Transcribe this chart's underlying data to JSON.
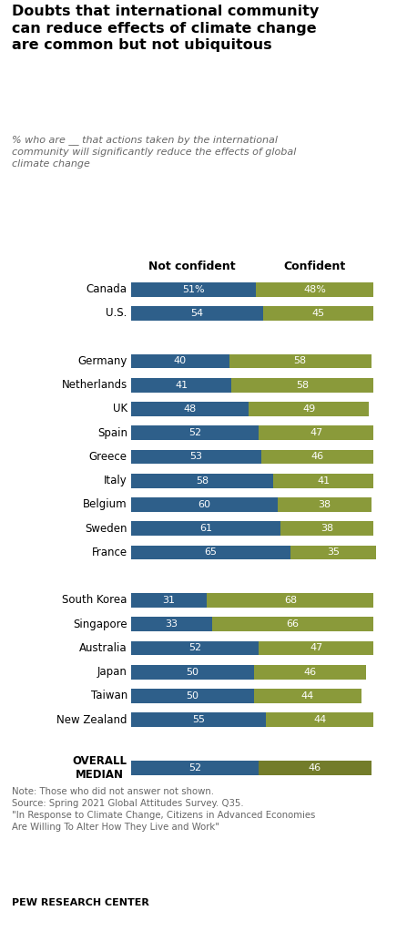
{
  "title": "Doubts that international community\ncan reduce effects of climate change\nare common but not ubiquitous",
  "subtitle": "% who are __ that actions taken by the international\ncommunity will significantly reduce the effects of global\nclimate change",
  "col_header_not": "Not confident",
  "col_header_conf": "Confident",
  "categories": [
    "Canada",
    "U.S.",
    "Germany",
    "Netherlands",
    "UK",
    "Spain",
    "Greece",
    "Italy",
    "Belgium",
    "Sweden",
    "France",
    "South Korea",
    "Singapore",
    "Australia",
    "Japan",
    "Taiwan",
    "New Zealand",
    "OVERALL\nMEDIAN"
  ],
  "not_confident": [
    51,
    54,
    40,
    41,
    48,
    52,
    53,
    58,
    60,
    61,
    65,
    31,
    33,
    52,
    50,
    50,
    55,
    52
  ],
  "confident": [
    48,
    45,
    58,
    58,
    49,
    47,
    46,
    41,
    38,
    38,
    35,
    68,
    66,
    47,
    46,
    44,
    44,
    46
  ],
  "labels_not": [
    "51%",
    "54",
    "40",
    "41",
    "48",
    "52",
    "53",
    "58",
    "60",
    "61",
    "65",
    "31",
    "33",
    "52",
    "50",
    "50",
    "55",
    "52"
  ],
  "labels_conf": [
    "48%",
    "45",
    "58",
    "58",
    "49",
    "47",
    "46",
    "41",
    "38",
    "38",
    "35",
    "68",
    "66",
    "47",
    "46",
    "44",
    "44",
    "46"
  ],
  "color_not": "#2E5F8A",
  "color_conf": "#8A9A3A",
  "color_median_conf": "#737C2A",
  "note_text": "Note: Those who did not answer not shown.\nSource: Spring 2021 Global Attitudes Survey. Q35.\n\"In Response to Climate Change, Citizens in Advanced Economies\nAre Willing To Alter How They Live and Work\"",
  "footer": "PEW RESEARCH CENTER",
  "group_separators_after": [
    1,
    10,
    16
  ],
  "bar_height": 0.6
}
